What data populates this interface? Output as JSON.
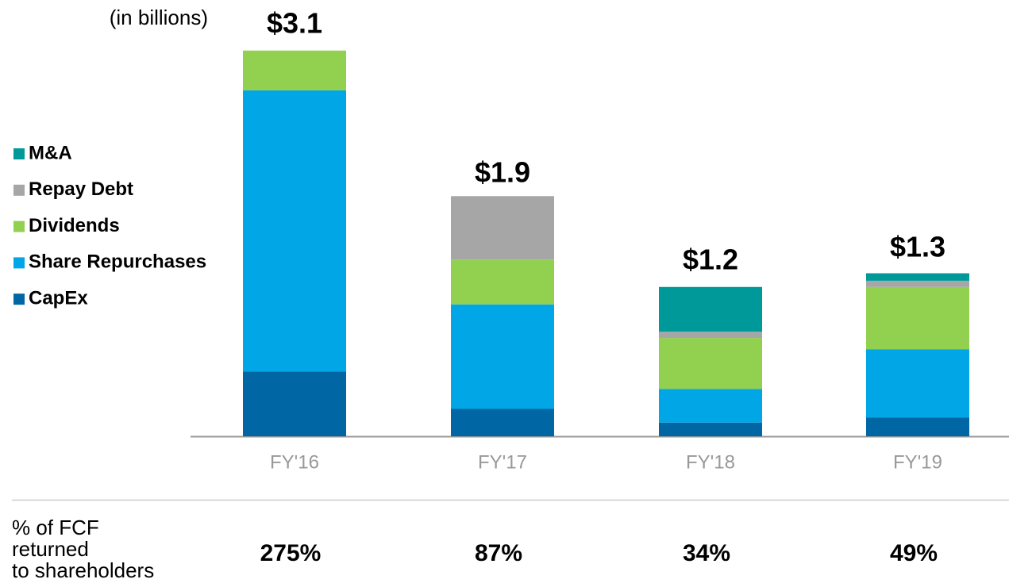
{
  "chart_data": {
    "type": "stacked_bar",
    "subtitle": "(in billions)",
    "categories": [
      "FY'16",
      "FY'17",
      "FY'18",
      "FY'19"
    ],
    "series": [
      {
        "name": "CapEx",
        "color": "#0066a4",
        "values": [
          0.52,
          0.22,
          0.11,
          0.15
        ]
      },
      {
        "name": "Share Repurchases",
        "color": "#00a6e6",
        "values": [
          2.26,
          0.84,
          0.27,
          0.55
        ]
      },
      {
        "name": "Dividends",
        "color": "#92d050",
        "values": [
          0.32,
          0.36,
          0.41,
          0.5
        ]
      },
      {
        "name": "Repay Debt",
        "color": "#a6a6a6",
        "values": [
          0,
          0.51,
          0.05,
          0.05
        ]
      },
      {
        "name": "M&A",
        "color": "#009999",
        "values": [
          0,
          0,
          0.36,
          0.06
        ]
      }
    ],
    "totals": {
      "values": [
        3.1,
        1.9,
        1.2,
        1.3
      ],
      "value_labels": [
        "$3.1",
        "$1.9",
        "$1.2",
        "$1.3"
      ]
    },
    "ylim": [
      0,
      3.5
    ],
    "fcf_returned": {
      "label": [
        "% of FCF",
        "returned",
        "to shareholders"
      ],
      "values": [
        275,
        87,
        34,
        49
      ],
      "value_labels": [
        "275%",
        "87%",
        "34%",
        "49%"
      ]
    }
  }
}
